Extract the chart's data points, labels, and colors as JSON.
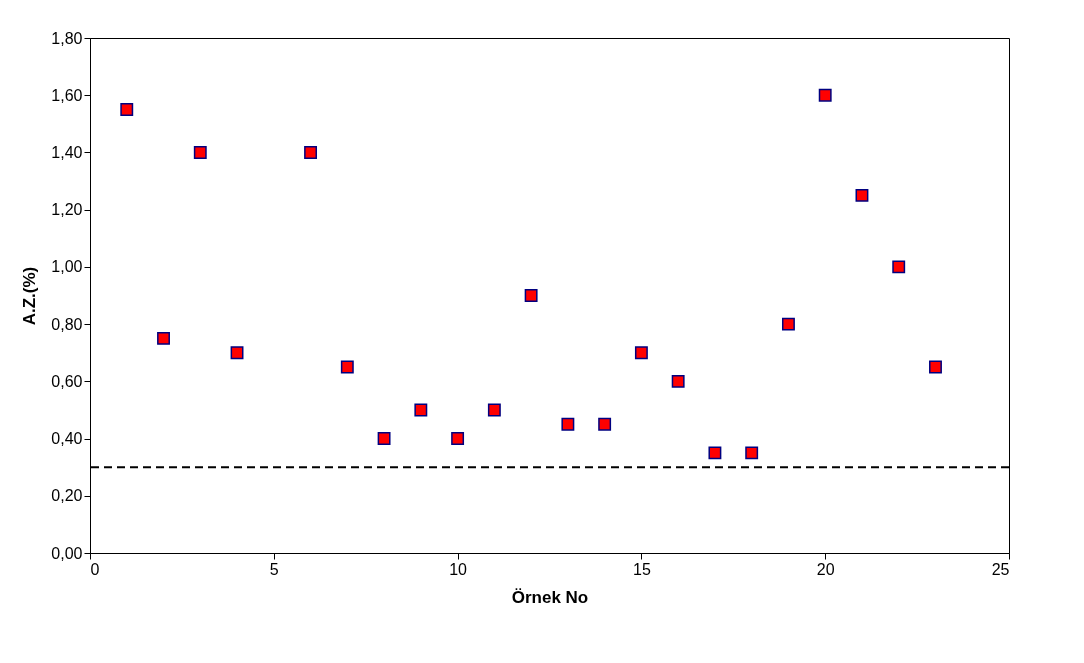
{
  "chart_data": {
    "type": "scatter",
    "xlabel": "Örnek No",
    "ylabel": "A.Z.(%)",
    "x": [
      1,
      2,
      3,
      4,
      6,
      7,
      8,
      9,
      10,
      11,
      12,
      13,
      14,
      15,
      16,
      17,
      18,
      19,
      20,
      21,
      22,
      23
    ],
    "series": [
      {
        "color": "#ff0000",
        "values": [
          1.55,
          0.75,
          1.4,
          0.7,
          1.4,
          0.65,
          0.4,
          0.5,
          0.4,
          0.5,
          0.9,
          0.45,
          0.45,
          0.7,
          0.6,
          0.35,
          0.35,
          0.8,
          1.6,
          1.25,
          1.0,
          0.65
        ]
      }
    ],
    "marker": "square",
    "grid": false,
    "xlim": [
      0,
      25
    ],
    "xticks": [
      0,
      5,
      10,
      15,
      20,
      25
    ],
    "ylim": [
      0,
      1.8
    ],
    "yticks": [
      {
        "value": 0,
        "label": "0,00"
      },
      {
        "value": 0.2,
        "label": "0,20"
      },
      {
        "value": 0.4,
        "label": "0,40"
      },
      {
        "value": 0.6,
        "label": "0,60"
      },
      {
        "value": 0.8,
        "label": "0,80"
      },
      {
        "value": 1.0,
        "label": "1,00"
      },
      {
        "value": 1.2,
        "label": "1,20"
      },
      {
        "value": 1.4,
        "label": "1,40"
      },
      {
        "value": 1.6,
        "label": "1,60"
      },
      {
        "value": 1.8,
        "label": "1,80"
      }
    ],
    "ref_lines": [
      {
        "axis": "y",
        "value": 0.3,
        "color": "#000000",
        "line_style": "dashed"
      }
    ]
  }
}
